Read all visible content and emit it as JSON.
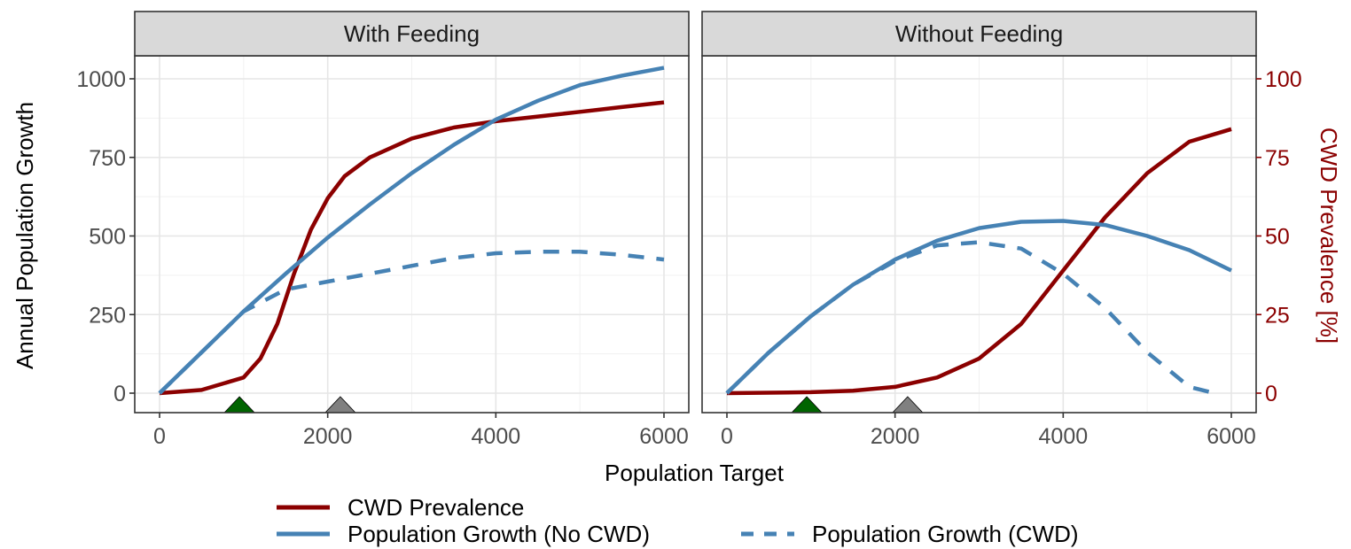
{
  "chart_data": {
    "type": "line",
    "xlabel": "Population Target",
    "ylabel": "Annual Population Growth",
    "y2label": "CWD Prevalence [%]",
    "xlim": [
      0,
      6000
    ],
    "ylim": [
      0,
      1000
    ],
    "y2lim": [
      0,
      100
    ],
    "x_ticks": [
      0,
      2000,
      4000,
      6000
    ],
    "y_ticks": [
      0,
      250,
      500,
      750,
      1000
    ],
    "y2_ticks": [
      0,
      25,
      50,
      75,
      100
    ],
    "grid": true,
    "legend_position": "bottom",
    "legend": [
      {
        "label": "CWD Prevalence",
        "color": "#8b0000",
        "dash": "solid"
      },
      {
        "label": "Population Growth (No CWD)",
        "color": "#4682b4",
        "dash": "solid"
      },
      {
        "label": "Population Growth (CWD)",
        "color": "#4682b4",
        "dash": "dashed"
      }
    ],
    "colors": {
      "prevalence": "#8b0000",
      "growth": "#4682b4",
      "marker_green": "#006400",
      "marker_grey": "#808080"
    },
    "panels": [
      {
        "title": "With Feeding",
        "markers": [
          {
            "x": 950,
            "color": "green"
          },
          {
            "x": 2150,
            "color": "grey"
          }
        ],
        "series": [
          {
            "name": "CWD Prevalence",
            "axis": "right",
            "style": "solid",
            "x": [
              0,
              500,
              1000,
              1200,
              1400,
              1600,
              1800,
              2000,
              2200,
              2500,
              3000,
              3500,
              4000,
              4500,
              5000,
              5500,
              6000
            ],
            "y": [
              0,
              1,
              5,
              11,
              22,
              38,
              52,
              62,
              69,
              75,
              81,
              84.5,
              86.5,
              88,
              89.5,
              91,
              92.5
            ]
          },
          {
            "name": "Population Growth (No CWD)",
            "axis": "left",
            "style": "solid",
            "x": [
              0,
              500,
              1000,
              1500,
              2000,
              2500,
              3000,
              3500,
              4000,
              4500,
              5000,
              5500,
              6000
            ],
            "y": [
              0,
              130,
              260,
              380,
              495,
              600,
              700,
              790,
              870,
              930,
              980,
              1010,
              1035
            ]
          },
          {
            "name": "Population Growth (CWD)",
            "axis": "left",
            "style": "dashed",
            "x": [
              0,
              500,
              1000,
              1500,
              2000,
              2500,
              3000,
              3500,
              4000,
              4500,
              5000,
              5500,
              6000
            ],
            "y": [
              0,
              130,
              260,
              330,
              355,
              380,
              405,
              430,
              445,
              450,
              450,
              440,
              425
            ]
          }
        ]
      },
      {
        "title": "Without Feeding",
        "markers": [
          {
            "x": 950,
            "color": "green"
          },
          {
            "x": 2150,
            "color": "grey"
          }
        ],
        "series": [
          {
            "name": "CWD Prevalence",
            "axis": "right",
            "style": "solid",
            "x": [
              0,
              1000,
              1500,
              2000,
              2500,
              3000,
              3500,
              4000,
              4500,
              5000,
              5500,
              6000
            ],
            "y": [
              0,
              0.3,
              0.8,
              2,
              5,
              11,
              22,
              39,
              56,
              70,
              80,
              84
            ]
          },
          {
            "name": "Population Growth (No CWD)",
            "axis": "left",
            "style": "solid",
            "x": [
              0,
              500,
              1000,
              1500,
              2000,
              2500,
              3000,
              3500,
              4000,
              4500,
              5000,
              5500,
              6000
            ],
            "y": [
              0,
              130,
              245,
              345,
              425,
              485,
              525,
              545,
              548,
              535,
              500,
              455,
              390
            ]
          },
          {
            "name": "Population Growth (CWD)",
            "axis": "left",
            "style": "dashed",
            "x": [
              0,
              500,
              1000,
              1500,
              2000,
              2500,
              3000,
              3500,
              4000,
              4500,
              5000,
              5500,
              5800
            ],
            "y": [
              0,
              130,
              245,
              345,
              420,
              470,
              480,
              460,
              380,
              270,
              130,
              20,
              0
            ]
          }
        ]
      }
    ]
  }
}
